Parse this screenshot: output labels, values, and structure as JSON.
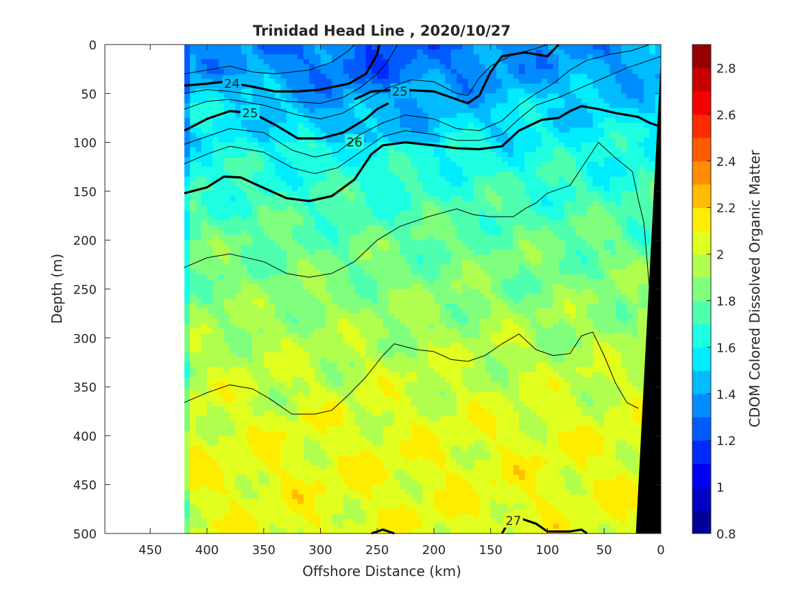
{
  "chart_data": {
    "type": "heatmap",
    "title": "Trinidad Head Line , 2020/10/27",
    "xlabel": "Offshore Distance (km)",
    "ylabel": "Depth (m)",
    "colorbar_label": "CDOM Colored Dissolved Organic Matter",
    "xlim": [
      490,
      0
    ],
    "ylim": [
      0,
      500
    ],
    "x_reversed": true,
    "y_reversed": true,
    "x_ticks": [
      450,
      400,
      350,
      300,
      250,
      200,
      150,
      100,
      50,
      0
    ],
    "x_tick_labels": [
      "450",
      "400",
      "350",
      "300",
      "250",
      "200",
      "150",
      "100",
      "50",
      "0"
    ],
    "y_ticks": [
      0,
      50,
      100,
      150,
      200,
      250,
      300,
      350,
      400,
      450,
      500
    ],
    "y_tick_labels": [
      "0",
      "50",
      "100",
      "150",
      "200",
      "250",
      "300",
      "350",
      "400",
      "450",
      "500"
    ],
    "colorbar": {
      "range": [
        0.8,
        2.9
      ],
      "colormap": "jet",
      "levels": [
        0.8,
        0.9,
        1.0,
        1.1,
        1.2,
        1.3,
        1.4,
        1.5,
        1.6,
        1.7,
        1.8,
        1.9,
        2.0,
        2.1,
        2.2,
        2.3,
        2.4,
        2.5,
        2.6,
        2.7,
        2.8,
        2.9
      ],
      "ticks": [
        0.8,
        1,
        1.2,
        1.4,
        1.6,
        1.8,
        2,
        2.2,
        2.4,
        2.6,
        2.8
      ],
      "tick_labels": [
        "0.8",
        "1",
        "1.2",
        "1.4",
        "1.6",
        "1.8",
        "2",
        "2.2",
        "2.4",
        "2.6",
        "2.8"
      ]
    },
    "data_extent_x": [
      420,
      0
    ],
    "field_profile": [
      {
        "depth": 0,
        "value": 1.38
      },
      {
        "depth": 30,
        "value": 1.4
      },
      {
        "depth": 60,
        "value": 1.52
      },
      {
        "depth": 100,
        "value": 1.6
      },
      {
        "depth": 150,
        "value": 1.7
      },
      {
        "depth": 200,
        "value": 1.8
      },
      {
        "depth": 250,
        "value": 1.86
      },
      {
        "depth": 300,
        "value": 1.94
      },
      {
        "depth": 350,
        "value": 2.0
      },
      {
        "depth": 400,
        "value": 2.06
      },
      {
        "depth": 450,
        "value": 2.08
      },
      {
        "depth": 500,
        "value": 2.06
      }
    ],
    "isopycnals": [
      {
        "label": "24",
        "major": true,
        "label_at": [
          378,
          40
        ],
        "points": [
          [
            420,
            42
          ],
          [
            400,
            40
          ],
          [
            385,
            38
          ],
          [
            360,
            43
          ],
          [
            340,
            48
          ],
          [
            320,
            48
          ],
          [
            300,
            46
          ],
          [
            275,
            40
          ],
          [
            260,
            30
          ],
          [
            250,
            10
          ],
          [
            248,
            0
          ]
        ]
      },
      {
        "label": "25",
        "major": true,
        "label_at": [
          230,
          48
        ],
        "points": [
          [
            270,
            56
          ],
          [
            255,
            48
          ],
          [
            230,
            46
          ],
          [
            200,
            48
          ],
          [
            170,
            60
          ],
          [
            160,
            52
          ],
          [
            150,
            28
          ],
          [
            140,
            12
          ],
          [
            120,
            8
          ],
          [
            100,
            12
          ],
          [
            90,
            0
          ]
        ]
      },
      {
        "label": "25",
        "major": true,
        "label_at": [
          362,
          70
        ],
        "points": [
          [
            420,
            88
          ],
          [
            400,
            76
          ],
          [
            380,
            68
          ],
          [
            360,
            70
          ],
          [
            340,
            82
          ],
          [
            320,
            96
          ],
          [
            300,
            96
          ],
          [
            280,
            90
          ],
          [
            260,
            76
          ],
          [
            250,
            66
          ],
          [
            240,
            60
          ]
        ]
      },
      {
        "label": "26",
        "major": true,
        "label_at": [
          270,
          100
        ],
        "points": [
          [
            420,
            152
          ],
          [
            400,
            146
          ],
          [
            385,
            135
          ],
          [
            370,
            136
          ],
          [
            355,
            144
          ],
          [
            330,
            157
          ],
          [
            310,
            160
          ],
          [
            290,
            155
          ],
          [
            270,
            138
          ],
          [
            255,
            112
          ],
          [
            245,
            103
          ],
          [
            225,
            100
          ],
          [
            200,
            103
          ],
          [
            180,
            106
          ],
          [
            160,
            107
          ],
          [
            140,
            104
          ],
          [
            125,
            88
          ],
          [
            105,
            77
          ],
          [
            90,
            75
          ],
          [
            80,
            68
          ],
          [
            70,
            63
          ],
          [
            55,
            66
          ],
          [
            40,
            70
          ],
          [
            20,
            74
          ],
          [
            10,
            80
          ],
          [
            0,
            84
          ]
        ]
      },
      {
        "label": "27",
        "major": true,
        "label_at": [
          130,
          487
        ],
        "points": [
          [
            140,
            500
          ],
          [
            135,
            490
          ],
          [
            125,
            484
          ],
          [
            110,
            490
          ],
          [
            100,
            498
          ],
          [
            80,
            498
          ],
          [
            70,
            496
          ],
          [
            65,
            500
          ]
        ]
      },
      {
        "label": "",
        "major": true,
        "label_at": [
          240,
          498
        ],
        "points": [
          [
            255,
            500
          ],
          [
            245,
            496
          ],
          [
            235,
            500
          ]
        ]
      },
      {
        "label": "",
        "major": false,
        "points": [
          [
            420,
            30
          ],
          [
            400,
            26
          ],
          [
            380,
            22
          ],
          [
            360,
            28
          ],
          [
            340,
            30
          ],
          [
            310,
            26
          ],
          [
            290,
            18
          ],
          [
            275,
            6
          ],
          [
            270,
            0
          ]
        ]
      },
      {
        "label": "",
        "major": false,
        "points": [
          [
            420,
            50
          ],
          [
            400,
            46
          ],
          [
            380,
            48
          ],
          [
            355,
            52
          ],
          [
            330,
            58
          ],
          [
            300,
            60
          ],
          [
            280,
            54
          ],
          [
            265,
            44
          ],
          [
            250,
            30
          ],
          [
            240,
            16
          ],
          [
            232,
            0
          ]
        ]
      },
      {
        "label": "",
        "major": false,
        "points": [
          [
            420,
            66
          ],
          [
            400,
            58
          ],
          [
            380,
            56
          ],
          [
            350,
            62
          ],
          [
            320,
            72
          ],
          [
            300,
            76
          ],
          [
            280,
            70
          ],
          [
            260,
            56
          ],
          [
            240,
            44
          ],
          [
            220,
            36
          ],
          [
            200,
            38
          ],
          [
            180,
            50
          ],
          [
            170,
            52
          ],
          [
            160,
            34
          ],
          [
            150,
            22
          ],
          [
            130,
            10
          ],
          [
            110,
            4
          ],
          [
            100,
            0
          ]
        ]
      },
      {
        "label": "",
        "major": false,
        "points": [
          [
            420,
            102
          ],
          [
            400,
            94
          ],
          [
            380,
            86
          ],
          [
            350,
            90
          ],
          [
            325,
            108
          ],
          [
            305,
            115
          ],
          [
            285,
            110
          ],
          [
            265,
            92
          ],
          [
            245,
            80
          ],
          [
            225,
            72
          ],
          [
            200,
            76
          ],
          [
            180,
            86
          ],
          [
            160,
            88
          ],
          [
            140,
            78
          ],
          [
            125,
            62
          ],
          [
            110,
            50
          ],
          [
            95,
            40
          ],
          [
            80,
            26
          ],
          [
            65,
            16
          ],
          [
            45,
            10
          ],
          [
            25,
            6
          ],
          [
            10,
            0
          ]
        ]
      },
      {
        "label": "",
        "major": false,
        "points": [
          [
            420,
            122
          ],
          [
            400,
            112
          ],
          [
            380,
            104
          ],
          [
            350,
            110
          ],
          [
            325,
            126
          ],
          [
            305,
            132
          ],
          [
            285,
            126
          ],
          [
            265,
            110
          ],
          [
            245,
            94
          ],
          [
            225,
            88
          ],
          [
            200,
            92
          ],
          [
            180,
            98
          ],
          [
            160,
            98
          ],
          [
            140,
            92
          ],
          [
            125,
            76
          ],
          [
            110,
            62
          ],
          [
            90,
            54
          ],
          [
            70,
            44
          ],
          [
            50,
            34
          ],
          [
            30,
            24
          ],
          [
            15,
            18
          ],
          [
            0,
            12
          ]
        ]
      },
      {
        "label": "",
        "major": false,
        "points": [
          [
            420,
            228
          ],
          [
            400,
            218
          ],
          [
            380,
            214
          ],
          [
            350,
            222
          ],
          [
            330,
            234
          ],
          [
            310,
            238
          ],
          [
            290,
            234
          ],
          [
            270,
            222
          ],
          [
            250,
            200
          ],
          [
            230,
            186
          ],
          [
            205,
            176
          ],
          [
            180,
            168
          ],
          [
            165,
            174
          ],
          [
            150,
            176
          ],
          [
            130,
            176
          ],
          [
            120,
            168
          ],
          [
            110,
            162
          ],
          [
            100,
            152
          ],
          [
            80,
            144
          ],
          [
            55,
            100
          ],
          [
            40,
            116
          ],
          [
            25,
            130
          ],
          [
            20,
            158
          ],
          [
            15,
            182
          ],
          [
            10,
            250
          ]
        ]
      },
      {
        "label": "",
        "major": false,
        "points": [
          [
            420,
            366
          ],
          [
            400,
            356
          ],
          [
            380,
            348
          ],
          [
            360,
            352
          ],
          [
            345,
            362
          ],
          [
            325,
            378
          ],
          [
            305,
            378
          ],
          [
            290,
            374
          ],
          [
            275,
            358
          ],
          [
            260,
            340
          ],
          [
            245,
            318
          ],
          [
            235,
            306
          ],
          [
            215,
            312
          ],
          [
            200,
            314
          ],
          [
            185,
            322
          ],
          [
            170,
            324
          ],
          [
            155,
            318
          ],
          [
            140,
            306
          ],
          [
            125,
            296
          ],
          [
            110,
            312
          ],
          [
            95,
            318
          ],
          [
            80,
            316
          ],
          [
            70,
            298
          ],
          [
            60,
            294
          ],
          [
            50,
            318
          ],
          [
            40,
            346
          ],
          [
            30,
            366
          ],
          [
            20,
            372
          ]
        ]
      }
    ],
    "land_mask": [
      [
        0,
        15
      ],
      [
        22,
        500
      ],
      [
        0,
        500
      ]
    ]
  }
}
